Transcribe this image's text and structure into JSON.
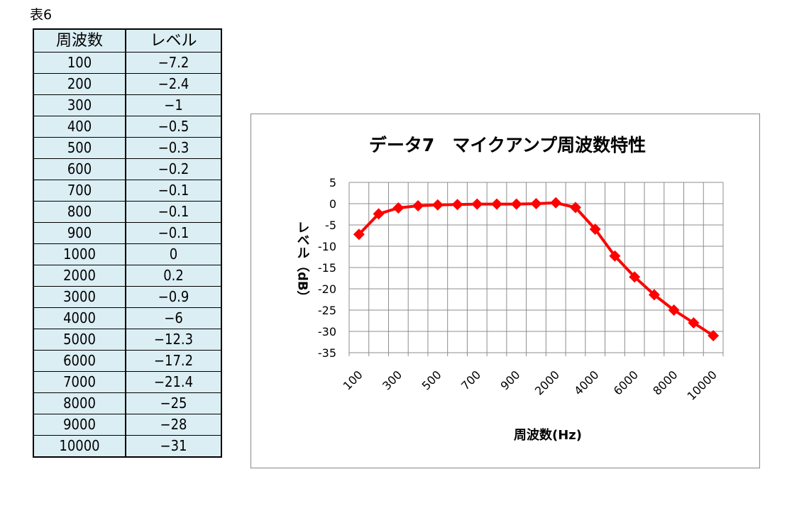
{
  "table": {
    "caption": "表6",
    "headers": [
      "周波数",
      "レベル"
    ],
    "rows": [
      [
        "100",
        "−7.2"
      ],
      [
        "200",
        "−2.4"
      ],
      [
        "300",
        "−1"
      ],
      [
        "400",
        "−0.5"
      ],
      [
        "500",
        "−0.3"
      ],
      [
        "600",
        "−0.2"
      ],
      [
        "700",
        "−0.1"
      ],
      [
        "800",
        "−0.1"
      ],
      [
        "900",
        "−0.1"
      ],
      [
        "1000",
        "0"
      ],
      [
        "2000",
        "0.2"
      ],
      [
        "3000",
        "−0.9"
      ],
      [
        "4000",
        "−6"
      ],
      [
        "5000",
        "−12.3"
      ],
      [
        "6000",
        "−17.2"
      ],
      [
        "7000",
        "−21.4"
      ],
      [
        "8000",
        "−25"
      ],
      [
        "9000",
        "−28"
      ],
      [
        "10000",
        "−31"
      ]
    ]
  },
  "chart_data": {
    "type": "line",
    "title": "データ7　マイクアンプ周波数特性",
    "xlabel": "周波数(Hz)",
    "ylabel": "レベル（dB）",
    "categories": [
      "100",
      "200",
      "300",
      "400",
      "500",
      "600",
      "700",
      "800",
      "900",
      "1000",
      "2000",
      "3000",
      "4000",
      "5000",
      "6000",
      "7000",
      "8000",
      "9000",
      "10000"
    ],
    "x_tick_labels": [
      "100",
      "300",
      "500",
      "700",
      "900",
      "2000",
      "4000",
      "6000",
      "8000",
      "10000"
    ],
    "series": [
      {
        "values": [
          -7.2,
          -2.4,
          -1,
          -0.5,
          -0.3,
          -0.2,
          -0.1,
          -0.1,
          -0.1,
          0,
          0.2,
          -0.9,
          -6,
          -12.3,
          -17.2,
          -21.4,
          -25,
          -28,
          -31
        ]
      }
    ],
    "ylim": [
      -35,
      5
    ],
    "yticks": [
      5,
      0,
      -5,
      -10,
      -15,
      -20,
      -25,
      -30,
      -35
    ],
    "grid": true,
    "series_color": "#ff0000",
    "marker": "diamond"
  }
}
